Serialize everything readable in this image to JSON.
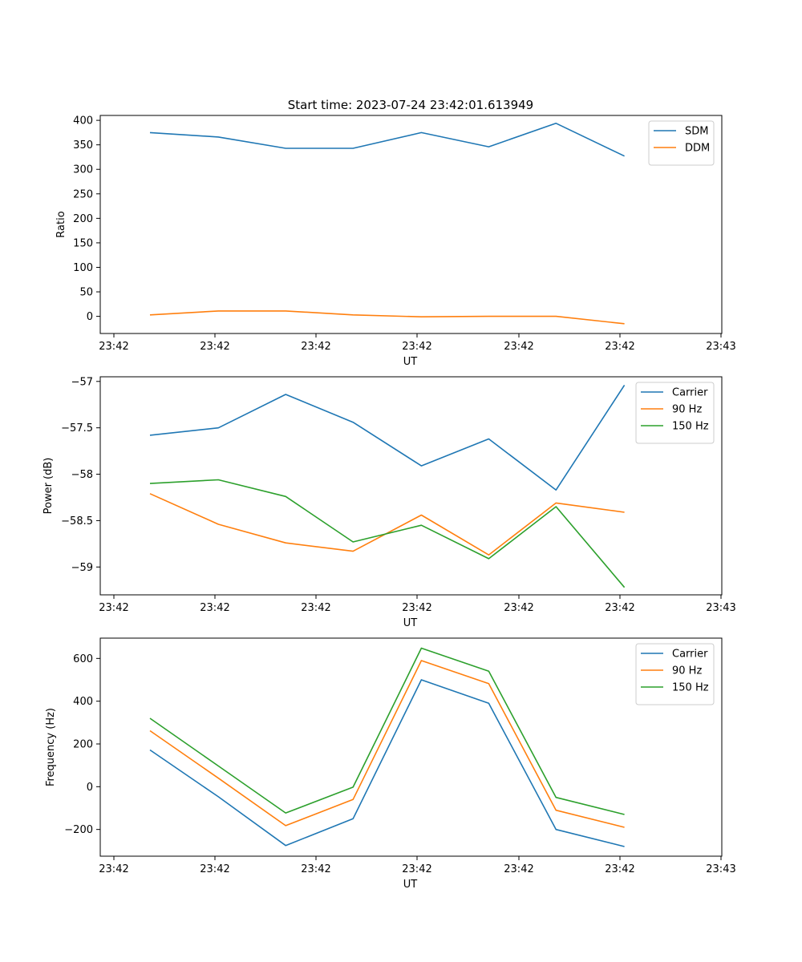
{
  "title": "Start time: 2023-07-24 23:42:01.613949",
  "colors": {
    "blue": "#1f77b4",
    "orange": "#ff7f0e",
    "green": "#2ca02c"
  },
  "chart_data": [
    {
      "type": "line",
      "title": "Start time: 2023-07-24 23:42:01.613949",
      "xlabel": "UT",
      "ylabel": "Ratio",
      "xticks": [
        "23:42",
        "23:42",
        "23:42",
        "23:42",
        "23:42",
        "23:42",
        "23:43"
      ],
      "xlim": [
        0,
        6
      ],
      "x": [
        0.48,
        1.14,
        1.79,
        2.44,
        3.1,
        3.75,
        4.4,
        5.06
      ],
      "ylim": [
        -35,
        410
      ],
      "yticks": [
        0,
        50,
        100,
        150,
        200,
        250,
        300,
        350,
        400
      ],
      "legend_position": "top-right",
      "series": [
        {
          "name": "SDM",
          "color": "#1f77b4",
          "values": [
            375,
            366,
            343,
            343,
            375,
            346,
            394,
            327
          ]
        },
        {
          "name": "DDM",
          "color": "#ff7f0e",
          "values": [
            3,
            11,
            11,
            3,
            -1,
            0,
            0,
            -15
          ]
        }
      ]
    },
    {
      "type": "line",
      "title": "",
      "xlabel": "UT",
      "ylabel": "Power (dB)",
      "xticks": [
        "23:42",
        "23:42",
        "23:42",
        "23:42",
        "23:42",
        "23:42",
        "23:43"
      ],
      "xlim": [
        0,
        6
      ],
      "x": [
        0.48,
        1.14,
        1.79,
        2.44,
        3.1,
        3.75,
        4.4,
        5.06
      ],
      "ylim": [
        -59.3,
        -56.95
      ],
      "yticks": [
        -59.0,
        -58.5,
        -58.0,
        -57.5,
        -57.0
      ],
      "legend_position": "top-right",
      "series": [
        {
          "name": "Carrier",
          "color": "#1f77b4",
          "values": [
            -57.58,
            -57.5,
            -57.14,
            -57.44,
            -57.91,
            -57.62,
            -58.17,
            -57.04
          ]
        },
        {
          "name": "90 Hz",
          "color": "#ff7f0e",
          "values": [
            -58.21,
            -58.54,
            -58.74,
            -58.83,
            -58.44,
            -58.87,
            -58.31,
            -58.41
          ]
        },
        {
          "name": "150 Hz",
          "color": "#2ca02c",
          "values": [
            -58.1,
            -58.06,
            -58.24,
            -58.73,
            -58.55,
            -58.91,
            -58.35,
            -59.22
          ]
        }
      ]
    },
    {
      "type": "line",
      "title": "",
      "xlabel": "UT",
      "ylabel": "Frequency (Hz)",
      "xticks": [
        "23:42",
        "23:42",
        "23:42",
        "23:42",
        "23:42",
        "23:42",
        "23:43"
      ],
      "xlim": [
        0,
        6
      ],
      "x": [
        0.48,
        1.14,
        1.79,
        2.44,
        3.1,
        3.75,
        4.4,
        5.06
      ],
      "ylim": [
        -325,
        695
      ],
      "yticks": [
        -200,
        0,
        200,
        400,
        600
      ],
      "legend_position": "top-right",
      "series": [
        {
          "name": "Carrier",
          "color": "#1f77b4",
          "values": [
            172,
            -47,
            -275,
            -150,
            500,
            390,
            -200,
            -280
          ]
        },
        {
          "name": "90 Hz",
          "color": "#ff7f0e",
          "values": [
            262,
            40,
            -182,
            -60,
            590,
            482,
            -110,
            -190
          ]
        },
        {
          "name": "150 Hz",
          "color": "#2ca02c",
          "values": [
            320,
            97,
            -123,
            -2,
            648,
            540,
            -50,
            -130
          ]
        }
      ]
    }
  ]
}
